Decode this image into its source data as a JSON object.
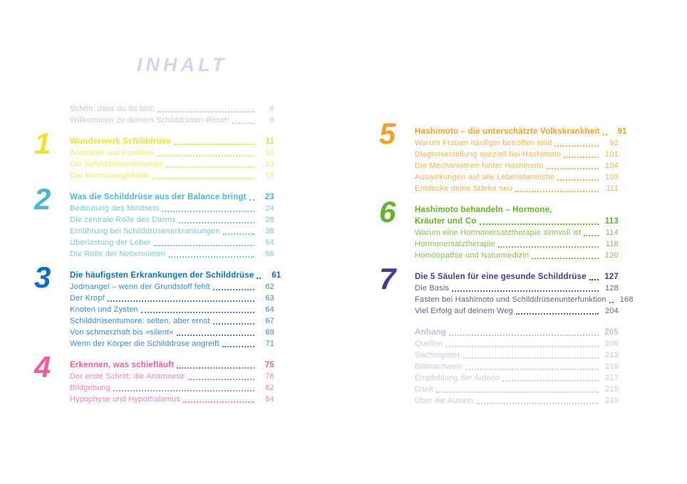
{
  "title": "INHALT",
  "title_color": "#d4d5eb",
  "intro_color": "#c6c7e0",
  "intro": [
    {
      "label": "Schön, dass du da bist!",
      "page": "6"
    },
    {
      "label": "Willkommen zu deinem Schilddrüsen-Reset!",
      "page": "8"
    }
  ],
  "chapters": [
    {
      "number": "1",
      "title": "Wunderwerk Schilddrüse",
      "page": "11",
      "color": "#f0e22f",
      "light": "#f4e96d",
      "entries": [
        {
          "label": "Anatomie und Funktion",
          "page": "12"
        },
        {
          "label": "Die Schilddrüsenhormone",
          "page": "13"
        },
        {
          "label": "Der Hormonregelkreis",
          "page": "19"
        }
      ]
    },
    {
      "number": "2",
      "title": "Was die Schilddrüse aus der Balance bringt",
      "page": "23",
      "color": "#4db7d1",
      "light": "#79c9dc",
      "entries": [
        {
          "label": "Bedeutung des Mindsets",
          "page": "24"
        },
        {
          "label": "Die zentrale Rolle des Darms",
          "page": "28"
        },
        {
          "label": "Ernährung bei Schilddrüsenerkrankungen",
          "page": "38"
        },
        {
          "label": "Überlastung der Leber",
          "page": "54"
        },
        {
          "label": "Die Rolle der Nebennieren",
          "page": "56"
        }
      ]
    },
    {
      "number": "3",
      "title": "Die häufigsten Erkrankungen der Schilddrüse",
      "page": "61",
      "color": "#0e6ebe",
      "light": "#3f88ca",
      "entries": [
        {
          "label": "Jodmangel – wenn der Grundstoff fehlt",
          "page": "62"
        },
        {
          "label": "Der Kropf",
          "page": "63"
        },
        {
          "label": "Knoten und Zysten",
          "page": "64"
        },
        {
          "label": "Schilddrüsentumore: selten, aber ernst",
          "page": "67"
        },
        {
          "label": "Von schmerzhaft bis »silent«",
          "page": "69"
        },
        {
          "label": "Wenn der Körper die Schilddrüse angreift",
          "page": "71"
        }
      ]
    },
    {
      "number": "4",
      "title": "Erkennen, was schiefläuft",
      "page": "75",
      "color": "#ef5c9d",
      "light": "#f286b4",
      "entries": [
        {
          "label": "Der erste Schritt: die Anamnese",
          "page": "76"
        },
        {
          "label": "Bildgebung",
          "page": "82"
        },
        {
          "label": "Hypophyse und Hypothalamus",
          "page": "84"
        }
      ]
    },
    {
      "number": "5",
      "title": "Hashimoto – die unterschätzte Volkskrankheit",
      "page": "91",
      "color": "#f5a126",
      "light": "#f7b357",
      "entries": [
        {
          "label": "Warum Frauen häufiger betroffen sind",
          "page": "92"
        },
        {
          "label": "Diagnosestellung speziell bei Hashimoto",
          "page": "101"
        },
        {
          "label": "Die Mechanismen hinter Hashimoto",
          "page": "104"
        },
        {
          "label": "Auswirkungen auf alle Lebensbereiche",
          "page": "109"
        },
        {
          "label": "Entdecke deine Stärke neu",
          "page": "111"
        }
      ]
    },
    {
      "number": "6",
      "title": "Hashimoto behandeln – Hormone,",
      "title2": "Kräuter und Co",
      "page": "113",
      "color": "#63b22b",
      "light": "#84c257",
      "entries": [
        {
          "label": "Warum eine Hormonersatztherapie sinnvoll ist",
          "page": "114"
        },
        {
          "label": "Hormonersatztherapie",
          "page": "116"
        },
        {
          "label": "Homöopathie und Naturmedizin",
          "page": "120"
        }
      ]
    },
    {
      "number": "7",
      "title": "Die 5 Säulen für eine gesunde Schilddrüse",
      "page": "127",
      "color": "#473a91",
      "light": "#655a9f",
      "entries": [
        {
          "label": "Die Basis",
          "page": "128"
        },
        {
          "label": "Fasten bei Hashimoto und Schilddrüsenunterfunktion",
          "page": "168"
        },
        {
          "label": "Viel Erfolg auf deinem Weg",
          "page": "204"
        }
      ]
    }
  ],
  "appendix": {
    "title": "Anhang",
    "page": "205",
    "color": "#c0c1dc",
    "light": "#c9cae2",
    "entries": [
      {
        "label": "Quellen",
        "page": "206"
      },
      {
        "label": "Sachregister",
        "page": "213"
      },
      {
        "label": "Bildnachweis",
        "page": "216"
      },
      {
        "label": "Empfehlung der Autorin",
        "page": "217"
      },
      {
        "label": "Dank",
        "page": "218"
      },
      {
        "label": "Über die Autorin",
        "page": "219"
      }
    ]
  }
}
